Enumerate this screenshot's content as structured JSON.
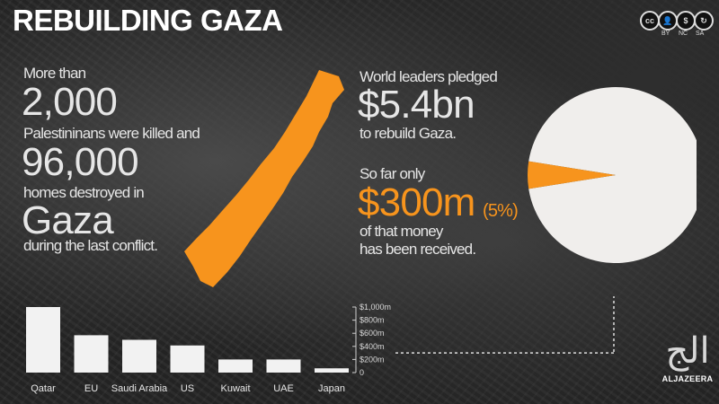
{
  "header": {
    "title": "REBUILDING GAZA"
  },
  "license": {
    "icon": "creative-commons-icon",
    "labels": [
      "BY",
      "NC",
      "SA"
    ]
  },
  "left_panel": {
    "line1": "More than",
    "deaths": "2,000",
    "line2": "Palestininans were killed and",
    "homes": "96,000",
    "line3": "homes destroyed in",
    "place": "Gaza",
    "line4": "during the last conflict."
  },
  "right_panel": {
    "pledge_intro": "World leaders pledged",
    "pledge_amount": "$5.4bn",
    "pledge_purpose": "to rebuild Gaza.",
    "received_intro": "So far only",
    "received_amount": "$300m",
    "received_pct": "(5%)",
    "received_line1": "of that money",
    "received_line2": "has been received."
  },
  "brand": {
    "icon": "aljazeera-logo-icon",
    "name": "ALJAZEERA"
  },
  "colors": {
    "accent": "#f7941d",
    "bar": "#f2f2f2",
    "pie": "#f0eeec",
    "text": "#e6e6e6"
  },
  "chart_data": [
    {
      "type": "pie",
      "title": "",
      "series": [
        {
          "label": "",
          "value": 95
        },
        {
          "label": "",
          "value": 5
        }
      ],
      "colors": [
        "#f0eeec",
        "#f7941d"
      ]
    },
    {
      "type": "bar",
      "title": "",
      "categories": [
        "Qatar",
        "EU",
        "Saudi Arabia",
        "US",
        "Kuwait",
        "UAE",
        "Japan"
      ],
      "values": [
        1000,
        570,
        500,
        414,
        200,
        200,
        65
      ],
      "ylim": [
        0,
        1000
      ],
      "yticks": [
        0,
        200,
        400,
        600,
        800,
        1000
      ],
      "ytick_labels": [
        "0",
        "$200m",
        "$400m",
        "$600m",
        "$800m",
        "$1,000m"
      ],
      "grid": false
    }
  ]
}
